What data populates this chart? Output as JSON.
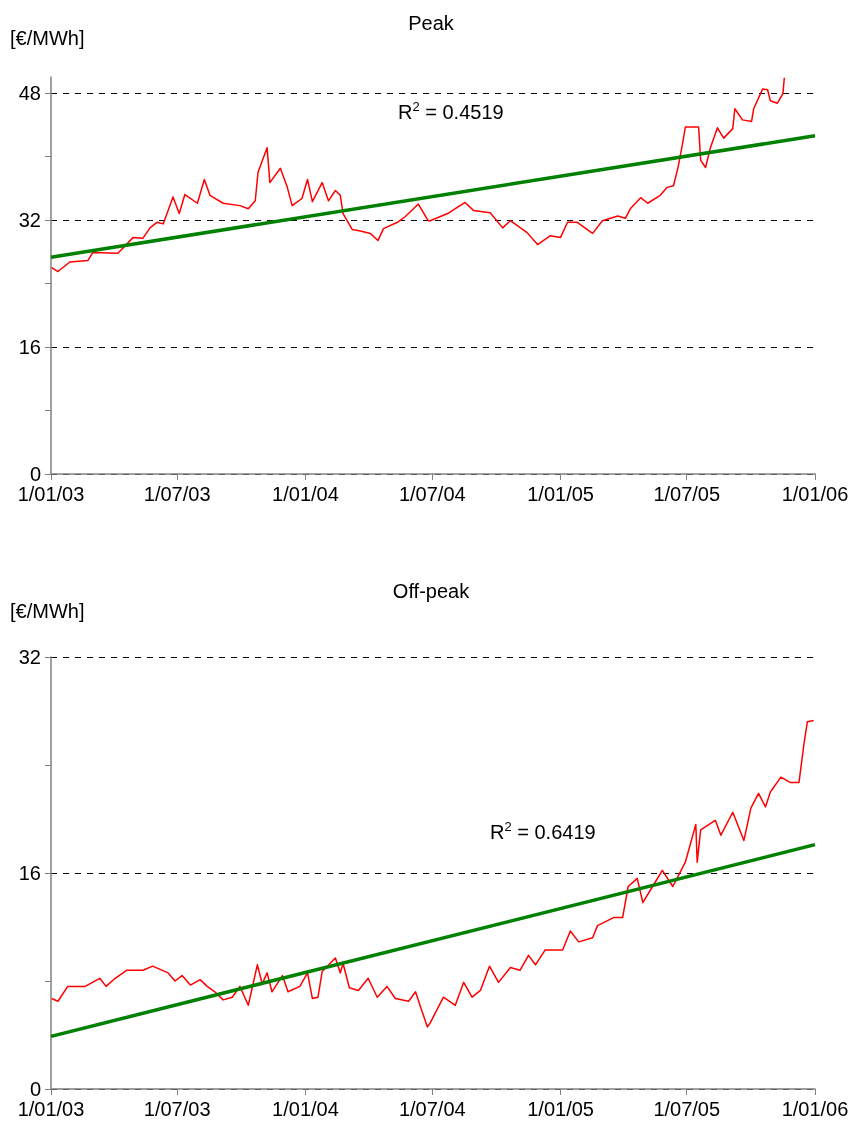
{
  "chart_data": [
    {
      "type": "line",
      "title": "Peak",
      "ylabel": "[€/MWh]",
      "annotations": [
        "R$^{2}$ = 0.4519"
      ],
      "xlim": [
        "2003-01-01",
        "2006-01-01"
      ],
      "xticks": [
        {
          "value": "2003-01-01",
          "label": "1/01/03"
        },
        {
          "value": "2003-07-01",
          "label": "1/07/03"
        },
        {
          "value": "2004-01-01",
          "label": "1/01/04"
        },
        {
          "value": "2004-07-01",
          "label": "1/07/04"
        },
        {
          "value": "2005-01-01",
          "label": "1/01/05"
        },
        {
          "value": "2005-07-01",
          "label": "1/07/05"
        },
        {
          "value": "2006-01-01",
          "label": "1/01/06"
        }
      ],
      "ylim": [
        0,
        50
      ],
      "yticks": [
        0,
        {
          "value": 8,
          "label": null
        },
        16,
        {
          "value": 24,
          "label": null
        },
        32,
        {
          "value": 40,
          "label": null
        },
        48
      ],
      "grid": "y",
      "marker": "none",
      "series": [
        {
          "color": "#ff0000",
          "x": [
            "2003-01-02",
            "2003-01-11",
            "2003-01-28",
            "2003-02-23",
            "2003-03-02",
            "2003-04-07",
            "2003-04-29",
            "2003-05-13",
            "2003-05-23",
            "2003-06-02",
            "2003-06-11",
            "2003-06-25",
            "2003-07-04",
            "2003-07-12",
            "2003-07-30",
            "2003-08-09",
            "2003-08-17",
            "2003-09-05",
            "2003-09-29",
            "2003-10-11",
            "2003-10-21",
            "2003-10-25",
            "2003-11-07",
            "2003-11-11",
            "2003-11-26",
            "2003-12-06",
            "2003-12-13",
            "2003-12-27",
            "2004-01-04",
            "2004-01-11",
            "2004-01-25",
            "2004-02-03",
            "2004-02-13",
            "2004-02-20",
            "2004-02-24",
            "2004-03-08",
            "2004-03-20",
            "2004-04-03",
            "2004-04-14",
            "2004-04-22",
            "2004-05-12",
            "2004-05-23",
            "2004-06-11",
            "2004-06-25",
            "2004-06-28",
            "2004-07-23",
            "2004-08-17",
            "2004-08-29",
            "2004-09-22",
            "2004-10-10",
            "2004-10-21",
            "2004-11-14",
            "2004-11-29",
            "2004-12-17",
            "2005-01-01",
            "2005-01-11",
            "2005-01-25",
            "2005-02-16",
            "2005-03-02",
            "2005-03-24",
            "2005-04-04",
            "2005-04-11",
            "2005-04-26",
            "2005-05-06",
            "2005-05-24",
            "2005-06-03",
            "2005-06-12",
            "2005-06-19",
            "2005-06-25",
            "2005-06-29",
            "2005-07-18",
            "2005-07-21",
            "2005-07-28",
            "2005-08-04",
            "2005-08-14",
            "2005-08-23",
            "2005-09-05",
            "2005-09-08",
            "2005-09-19",
            "2005-10-02",
            "2005-10-05",
            "2005-10-18",
            "2005-10-25",
            "2005-10-29",
            "2005-11-08",
            "2005-11-16",
            "2005-11-18"
          ],
          "values": [
            26.0,
            25.5,
            26.7,
            26.9,
            27.9,
            27.8,
            29.8,
            29.7,
            31.0,
            31.7,
            31.5,
            34.9,
            32.8,
            35.2,
            34.1,
            37.1,
            35.1,
            34.1,
            33.8,
            33.4,
            34.4,
            38.0,
            41.1,
            36.7,
            38.5,
            36.1,
            33.8,
            34.7,
            37.1,
            34.3,
            36.7,
            34.4,
            35.7,
            35.1,
            32.8,
            30.8,
            30.6,
            30.3,
            29.4,
            30.9,
            31.7,
            32.4,
            34.0,
            31.9,
            31.9,
            32.8,
            34.2,
            33.2,
            32.9,
            31.0,
            31.9,
            30.4,
            28.9,
            30.0,
            29.8,
            31.7,
            31.7,
            30.3,
            31.9,
            32.5,
            32.2,
            33.4,
            34.8,
            34.1,
            35.1,
            36.1,
            36.3,
            38.8,
            41.6,
            43.7,
            43.7,
            39.5,
            38.6,
            41.1,
            43.6,
            42.3,
            43.5,
            46.0,
            44.6,
            44.4,
            46.0,
            48.5,
            48.4,
            47.0,
            46.7,
            47.9,
            49.9
          ]
        },
        {
          "color": "#008000",
          "x": [
            "2003-01-01",
            "2006-01-01"
          ],
          "values": [
            27.3,
            42.6
          ]
        }
      ]
    },
    {
      "type": "line",
      "title": "Off-peak",
      "ylabel": "[€/MWh]",
      "annotations": [
        "R$^{2}$ = 0.6419"
      ],
      "xlim": [
        "2003-01-01",
        "2006-01-01"
      ],
      "xticks": [
        {
          "value": "2003-01-01",
          "label": "1/01/03"
        },
        {
          "value": "2003-07-01",
          "label": "1/07/03"
        },
        {
          "value": "2004-01-01",
          "label": "1/01/04"
        },
        {
          "value": "2004-07-01",
          "label": "1/07/04"
        },
        {
          "value": "2005-01-01",
          "label": "1/01/05"
        },
        {
          "value": "2005-07-01",
          "label": "1/07/05"
        },
        {
          "value": "2006-01-01",
          "label": "1/01/06"
        }
      ],
      "ylim": [
        0,
        32
      ],
      "yticks": [
        0,
        {
          "value": 8,
          "label": null
        },
        16,
        {
          "value": 24,
          "label": null
        },
        32
      ],
      "grid": "y",
      "marker": "none",
      "series": [
        {
          "color": "#ff0000",
          "x": [
            "2003-01-02",
            "2003-01-11",
            "2003-01-25",
            "2003-02-19",
            "2003-03-12",
            "2003-03-21",
            "2003-04-03",
            "2003-04-20",
            "2003-05-13",
            "2003-05-27",
            "2003-06-18",
            "2003-06-28",
            "2003-07-08",
            "2003-07-20",
            "2003-08-03",
            "2003-08-13",
            "2003-08-24",
            "2003-09-05",
            "2003-09-18",
            "2003-09-29",
            "2003-10-11",
            "2003-10-24",
            "2003-10-31",
            "2003-11-07",
            "2003-11-14",
            "2003-11-29",
            "2003-12-07",
            "2003-12-24",
            "2004-01-04",
            "2004-01-11",
            "2004-01-19",
            "2004-01-25",
            "2004-02-13",
            "2004-02-20",
            "2004-02-24",
            "2004-03-04",
            "2004-03-17",
            "2004-03-31",
            "2004-04-13",
            "2004-04-27",
            "2004-05-09",
            "2004-05-28",
            "2004-06-07",
            "2004-06-14",
            "2004-06-24",
            "2004-06-28",
            "2004-07-17",
            "2004-08-03",
            "2004-08-15",
            "2004-08-27",
            "2004-09-08",
            "2004-09-21",
            "2004-10-04",
            "2004-10-21",
            "2004-11-04",
            "2004-11-16",
            "2004-11-26",
            "2004-12-10",
            "2005-01-04",
            "2005-01-15",
            "2005-01-27",
            "2005-02-16",
            "2005-02-23",
            "2005-03-18",
            "2005-03-31",
            "2005-04-08",
            "2005-04-21",
            "2005-04-29",
            "2005-05-13",
            "2005-05-27",
            "2005-06-11",
            "2005-06-29",
            "2005-07-14",
            "2005-07-16",
            "2005-07-21",
            "2005-08-11",
            "2005-08-19",
            "2005-09-05",
            "2005-09-21",
            "2005-10-01",
            "2005-10-12",
            "2005-10-22",
            "2005-10-29",
            "2005-11-13",
            "2005-11-27",
            "2005-12-09",
            "2005-12-16",
            "2005-12-21",
            "2005-12-30"
          ],
          "values": [
            6.7,
            6.5,
            7.6,
            7.6,
            8.2,
            7.6,
            8.2,
            8.8,
            8.8,
            9.1,
            8.6,
            8.0,
            8.4,
            7.7,
            8.1,
            7.6,
            7.2,
            6.6,
            6.8,
            7.6,
            6.2,
            9.2,
            7.8,
            8.6,
            7.2,
            8.4,
            7.2,
            7.6,
            8.6,
            6.7,
            6.8,
            8.7,
            9.7,
            8.6,
            9.3,
            7.5,
            7.3,
            8.2,
            6.8,
            7.6,
            6.7,
            6.5,
            7.2,
            6.1,
            4.6,
            4.9,
            6.8,
            6.2,
            7.9,
            6.8,
            7.3,
            9.1,
            7.9,
            9.0,
            8.8,
            9.9,
            9.2,
            10.3,
            10.3,
            11.7,
            10.9,
            11.2,
            12.1,
            12.7,
            12.7,
            15.0,
            15.6,
            13.8,
            15.0,
            16.2,
            15.0,
            16.8,
            19.6,
            16.8,
            19.2,
            19.9,
            18.8,
            20.5,
            18.4,
            20.8,
            21.9,
            20.9,
            22.0,
            23.1,
            22.7,
            22.7,
            25.5,
            27.2,
            27.3
          ]
        },
        {
          "color": "#008000",
          "x": [
            "2003-01-01",
            "2006-01-01"
          ],
          "values": [
            3.9,
            18.1
          ]
        }
      ]
    }
  ]
}
